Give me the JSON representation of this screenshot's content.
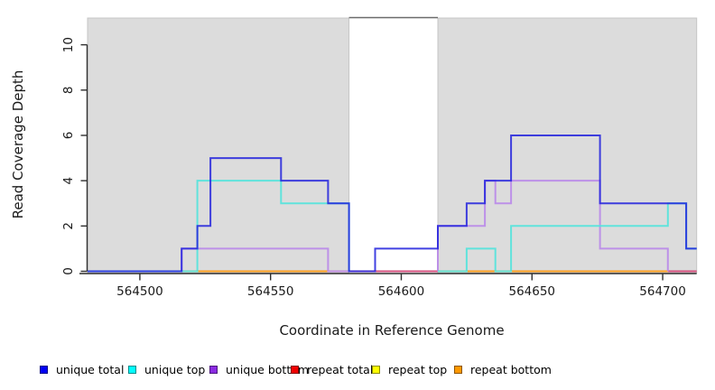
{
  "chart_data": {
    "type": "step-line",
    "title": "",
    "xlabel": "Coordinate in Reference Genome",
    "ylabel": "Read Coverage Depth",
    "xlim": [
      564480,
      564713
    ],
    "ylim": [
      0,
      11.2
    ],
    "x_ticks": [
      564500,
      564550,
      564600,
      564650,
      564700
    ],
    "y_ticks": [
      0,
      2,
      4,
      6,
      8,
      10
    ],
    "grid": false,
    "legend_position": "bottom",
    "shaded_regions": [
      [
        564480,
        564580
      ],
      [
        564614,
        564713
      ]
    ],
    "gap_region": [
      564580,
      564614
    ],
    "region_fill": "#dcdcdc",
    "region_border": "#c6c6c6",
    "gap_top_border_color": "#6b6b6b",
    "axis_color": "#2f2f2f",
    "draw_order": [
      3,
      4,
      5,
      2,
      1,
      0
    ],
    "series": [
      {
        "name": "unique total",
        "color": "#2121dd",
        "opacity": 0.85,
        "segments": [
          [
            [
              564480,
              0
            ],
            [
              564516,
              1
            ],
            [
              564522,
              2
            ],
            [
              564527,
              5
            ],
            [
              564554,
              4
            ],
            [
              564572,
              3
            ],
            [
              564580,
              0
            ],
            [
              564590,
              1
            ],
            [
              564614,
              2
            ],
            [
              564625,
              3
            ],
            [
              564632,
              4
            ],
            [
              564642,
              6
            ],
            [
              564676,
              3
            ],
            [
              564709,
              1
            ],
            [
              564713,
              1
            ]
          ]
        ]
      },
      {
        "name": "unique top",
        "color": "#52e3dc",
        "opacity": 0.9,
        "segments": [
          [
            [
              564480,
              0
            ],
            [
              564522,
              4
            ],
            [
              564554,
              3
            ],
            [
              564580,
              0
            ]
          ],
          [
            [
              564614,
              0
            ],
            [
              564625,
              1
            ],
            [
              564636,
              0
            ],
            [
              564642,
              2
            ],
            [
              564702,
              3
            ],
            [
              564709,
              1
            ],
            [
              564713,
              1
            ]
          ]
        ]
      },
      {
        "name": "unique bottom",
        "color": "#bb8ce8",
        "opacity": 0.95,
        "segments": [
          [
            [
              564480,
              0
            ],
            [
              564516,
              1
            ],
            [
              564572,
              0
            ],
            [
              564580,
              0
            ]
          ],
          [
            [
              564614,
              0
            ],
            [
              564614,
              2
            ],
            [
              564632,
              4
            ],
            [
              564636,
              3
            ],
            [
              564642,
              4
            ],
            [
              564676,
              1
            ],
            [
              564702,
              0
            ]
          ]
        ]
      },
      {
        "name": "repeat total",
        "color": "#d24f7c",
        "opacity": 1,
        "segments": [
          [
            [
              564480,
              0
            ],
            [
              564713,
              0
            ]
          ]
        ]
      },
      {
        "name": "repeat top",
        "color": "#f5e636",
        "opacity": 1,
        "segments": [
          [
            [
              564517,
              0
            ],
            [
              564580,
              0
            ]
          ],
          [
            [
              564614,
              0
            ],
            [
              564702,
              0
            ]
          ]
        ]
      },
      {
        "name": "repeat bottom",
        "color": "#ff9d1f",
        "opacity": 1,
        "segments": [
          [
            [
              564517,
              0
            ],
            [
              564580,
              0
            ]
          ],
          [
            [
              564614,
              0
            ],
            [
              564702,
              0
            ]
          ]
        ]
      }
    ],
    "legend": [
      {
        "label": "unique total",
        "swatch": "#0000f5"
      },
      {
        "label": "unique top",
        "swatch": "#00ffff"
      },
      {
        "label": "unique bottom",
        "swatch": "#8b2be2"
      },
      {
        "label": "repeat total",
        "swatch": "#f00000"
      },
      {
        "label": "repeat top",
        "swatch": "#ffff00"
      },
      {
        "label": "repeat bottom",
        "swatch": "#ff9900"
      }
    ]
  }
}
